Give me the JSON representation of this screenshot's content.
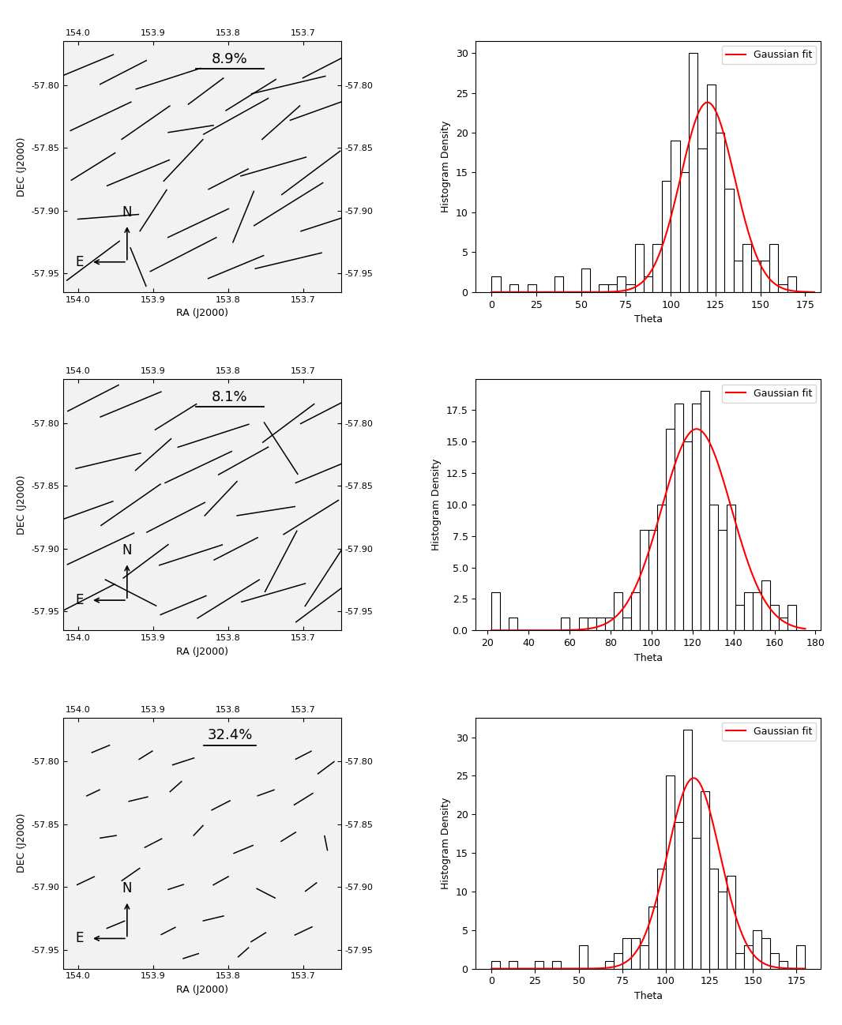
{
  "chart_data": [
    {
      "type": "vector_map",
      "xlabel": "RA (J2000)",
      "ylabel": "DEC (J2000)",
      "xlim": [
        154.02,
        153.65
      ],
      "ylim": [
        -57.965,
        -57.765
      ],
      "xticks": [
        {
          "value": 154.0,
          "label": "154.0"
        },
        {
          "value": 153.9,
          "label": "153.9"
        },
        {
          "value": 153.8,
          "label": "153.8"
        },
        {
          "value": 153.7,
          "label": "153.7"
        }
      ],
      "yticks": [
        {
          "value": -57.8,
          "label": "-57.80"
        },
        {
          "value": -57.85,
          "label": "-57.85"
        },
        {
          "value": -57.9,
          "label": "-57.90"
        },
        {
          "value": -57.95,
          "label": "-57.95"
        }
      ],
      "color": "black",
      "scale_bar": {
        "value": 8.9,
        "label": "8.9%"
      },
      "annotations": [
        "N",
        "E"
      ],
      "vectors": {
        "ra": [
          153.99,
          153.94,
          153.88,
          153.83,
          153.77,
          153.72,
          153.67,
          153.97,
          153.91,
          153.85,
          153.79,
          153.73,
          153.68,
          153.98,
          153.92,
          153.86,
          153.8,
          153.74,
          153.69,
          153.96,
          153.9,
          153.84,
          153.78,
          153.72,
          153.67,
          153.98,
          153.92,
          153.86,
          153.79,
          153.72
        ],
        "dec": [
          -57.785,
          -57.79,
          -57.795,
          -57.805,
          -57.808,
          -57.8,
          -57.785,
          -57.825,
          -57.83,
          -57.835,
          -57.825,
          -57.83,
          -57.82,
          -57.865,
          -57.87,
          -57.86,
          -57.875,
          -57.865,
          -57.87,
          -57.905,
          -57.9,
          -57.91,
          -57.905,
          -57.895,
          -57.91,
          -57.94,
          -57.945,
          -57.935,
          -57.945,
          -57.94
        ],
        "p": [
          8,
          7,
          9,
          6,
          8,
          10,
          7,
          9,
          8,
          6,
          10,
          7,
          8,
          7,
          9,
          8,
          6,
          9,
          10,
          8,
          7,
          9,
          8,
          11,
          7,
          9,
          6,
          10,
          8,
          9
        ],
        "theta": [
          115,
          120,
          110,
          130,
          125,
          105,
          120,
          118,
          128,
          100,
          122,
          135,
          112,
          125,
          115,
          140,
          120,
          108,
          130,
          95,
          150,
          118,
          160,
          125,
          110,
          130,
          20,
          120,
          115,
          105
        ]
      }
    },
    {
      "type": "histogram",
      "xlabel": "Theta",
      "ylabel": "Histogram Density",
      "xlim": [
        -8.75,
        183.75
      ],
      "ylim": [
        0,
        31.5
      ],
      "xticks": [
        0,
        25,
        50,
        75,
        100,
        125,
        150,
        175
      ],
      "yticks": [
        0,
        5,
        10,
        15,
        20,
        25,
        30
      ],
      "color": "black",
      "legend": "upper right",
      "bins": [
        0,
        5,
        10,
        15,
        20,
        25,
        30,
        35,
        40,
        45,
        50,
        55,
        60,
        65,
        70,
        75,
        80,
        85,
        90,
        95,
        100,
        105,
        110,
        115,
        120,
        125,
        130,
        135,
        140,
        145,
        150,
        155,
        160,
        165,
        170,
        175,
        180
      ],
      "counts": [
        2,
        0,
        1,
        0,
        1,
        0,
        0,
        2,
        0,
        0,
        3,
        0,
        1,
        1,
        2,
        1,
        6,
        2,
        6,
        14,
        19,
        15,
        30,
        18,
        26,
        20,
        13,
        4,
        6,
        4,
        4,
        6,
        1,
        2,
        0,
        0
      ],
      "series": [
        {
          "name": "Gaussian fit",
          "color": "red",
          "mean": 120.5,
          "sigma": 15.0,
          "amplitude": 23.8
        }
      ]
    },
    {
      "type": "vector_map",
      "xlabel": "RA (J2000)",
      "ylabel": "DEC (J2000)",
      "xlim": [
        154.02,
        153.65
      ],
      "ylim": [
        -57.965,
        -57.765
      ],
      "xticks": [
        {
          "value": 154.0,
          "label": "154.0"
        },
        {
          "value": 153.9,
          "label": "153.9"
        },
        {
          "value": 153.8,
          "label": "153.8"
        },
        {
          "value": 153.7,
          "label": "153.7"
        }
      ],
      "yticks": [
        {
          "value": -57.8,
          "label": "-57.80"
        },
        {
          "value": -57.85,
          "label": "-57.85"
        },
        {
          "value": -57.9,
          "label": "-57.90"
        },
        {
          "value": -57.95,
          "label": "-57.95"
        }
      ],
      "color": "black",
      "scale_bar": {
        "value": 8.1,
        "label": "8.1%"
      },
      "annotations": [
        "N",
        "E"
      ],
      "vectors": {
        "ra": [
          153.98,
          153.93,
          153.87,
          153.82,
          153.72,
          153.67,
          153.96,
          153.9,
          153.84,
          153.78,
          153.73,
          153.68,
          153.99,
          153.93,
          153.87,
          153.81,
          153.75,
          153.69,
          153.97,
          153.91,
          153.85,
          153.79,
          153.73,
          153.67,
          153.99,
          153.93,
          153.86,
          153.8,
          153.74,
          153.68
        ],
        "dec": [
          -57.78,
          -57.785,
          -57.795,
          -57.81,
          -57.8,
          -57.79,
          -57.83,
          -57.825,
          -57.835,
          -57.83,
          -57.82,
          -57.84,
          -57.87,
          -57.865,
          -57.875,
          -57.86,
          -57.87,
          -57.875,
          -57.9,
          -57.91,
          -57.905,
          -57.9,
          -57.91,
          -57.92,
          -57.94,
          -57.935,
          -57.945,
          -57.94,
          -57.935,
          -57.945
        ],
        "p": [
          7,
          8,
          6,
          9,
          8,
          7,
          8,
          6,
          9,
          7,
          8,
          6,
          7,
          9,
          8,
          6,
          7,
          8,
          9,
          7,
          8,
          6,
          9,
          10,
          8,
          7,
          6,
          9,
          8,
          7
        ],
        "theta": [
          120,
          115,
          125,
          110,
          130,
          120,
          105,
          135,
          118,
          122,
          30,
          115,
          112,
          128,
          120,
          140,
          100,
          125,
          118,
          130,
          110,
          120,
          155,
          150,
          120,
          60,
          115,
          125,
          108,
          130
        ]
      }
    },
    {
      "type": "histogram",
      "xlabel": "Theta",
      "ylabel": "Histogram Density",
      "xlim": [
        14.35,
        182.65
      ],
      "ylim": [
        0,
        19.95
      ],
      "xticks": [
        20,
        40,
        60,
        80,
        100,
        120,
        140,
        160,
        180
      ],
      "yticks": [
        {
          "value": 0,
          "label": "0.0"
        },
        {
          "value": 2.5,
          "label": "2.5"
        },
        {
          "value": 5,
          "label": "5.0"
        },
        {
          "value": 7.5,
          "label": "7.5"
        },
        {
          "value": 10,
          "label": "10.0"
        },
        {
          "value": 12.5,
          "label": "12.5"
        },
        {
          "value": 15,
          "label": "15.0"
        },
        {
          "value": 17.5,
          "label": "17.5"
        }
      ],
      "color": "black",
      "legend": "upper right",
      "bins": [
        22,
        26.25,
        30.5,
        34.75,
        39,
        43.25,
        47.5,
        51.75,
        56,
        60.25,
        64.5,
        68.75,
        73,
        77.25,
        81.5,
        85.75,
        90,
        94.25,
        98.5,
        102.75,
        107,
        111.25,
        115.5,
        119.75,
        124,
        128.25,
        132.5,
        136.75,
        141,
        145.25,
        149.5,
        153.75,
        158,
        162.25,
        166.5,
        170.75,
        175
      ],
      "counts": [
        3,
        0,
        1,
        0,
        0,
        0,
        0,
        0,
        1,
        0,
        1,
        1,
        1,
        1,
        3,
        1,
        3,
        8,
        8,
        10,
        16,
        18,
        15,
        18,
        19,
        10,
        8,
        10,
        2,
        3,
        3,
        4,
        2,
        1,
        2,
        0
      ],
      "series": [
        {
          "name": "Gaussian fit",
          "color": "red",
          "mean": 122.0,
          "sigma": 17.0,
          "amplitude": 16.0
        }
      ]
    },
    {
      "type": "vector_map",
      "xlabel": "RA (J2000)",
      "ylabel": "DEC (J2000)",
      "xlim": [
        154.02,
        153.65
      ],
      "ylim": [
        -57.965,
        -57.765
      ],
      "xticks": [
        {
          "value": 154.0,
          "label": "154.0"
        },
        {
          "value": 153.9,
          "label": "153.9"
        },
        {
          "value": 153.8,
          "label": "153.8"
        },
        {
          "value": 153.7,
          "label": "153.7"
        }
      ],
      "yticks": [
        {
          "value": -57.8,
          "label": "-57.80"
        },
        {
          "value": -57.85,
          "label": "-57.85"
        },
        {
          "value": -57.9,
          "label": "-57.90"
        },
        {
          "value": -57.95,
          "label": "-57.95"
        }
      ],
      "color": "black",
      "scale_bar": {
        "value": 32.4,
        "label": "32.4%"
      },
      "annotations": [
        "N",
        "E"
      ],
      "vectors": {
        "ra": [
          153.97,
          153.91,
          153.86,
          153.7,
          153.67,
          153.98,
          153.92,
          153.87,
          153.81,
          153.75,
          153.7,
          153.96,
          153.9,
          153.84,
          153.78,
          153.72,
          153.67,
          153.99,
          153.93,
          153.87,
          153.81,
          153.75,
          153.69,
          153.95,
          153.88,
          153.82,
          153.76,
          153.7,
          153.85,
          153.78
        ],
        "dec": [
          -57.79,
          -57.795,
          -57.8,
          -57.795,
          -57.805,
          -57.825,
          -57.83,
          -57.82,
          -57.835,
          -57.825,
          -57.83,
          -57.86,
          -57.865,
          -57.855,
          -57.87,
          -57.86,
          -57.865,
          -57.895,
          -57.89,
          -57.9,
          -57.895,
          -57.905,
          -57.9,
          -57.93,
          -57.935,
          -57.925,
          -57.94,
          -57.935,
          -57.955,
          -57.952
        ],
        "p": [
          12,
          10,
          14,
          11,
          13,
          9,
          12,
          10,
          13,
          11,
          14,
          10,
          12,
          9,
          13,
          11,
          10,
          12,
          14,
          10,
          11,
          13,
          9,
          12,
          10,
          13,
          11,
          12,
          10,
          9
        ],
        "theta": [
          115,
          125,
          110,
          120,
          130,
          118,
          105,
          135,
          120,
          112,
          125,
          100,
          120,
          140,
          115,
          125,
          10,
          118,
          128,
          110,
          122,
          60,
          130,
          115,
          120,
          105,
          125,
          118,
          110,
          135
        ]
      }
    },
    {
      "type": "histogram",
      "xlabel": "Theta",
      "ylabel": "Histogram Density",
      "xlim": [
        -9,
        189
      ],
      "ylim": [
        0,
        32.55
      ],
      "xticks": [
        0,
        25,
        50,
        75,
        100,
        125,
        150,
        175
      ],
      "yticks": [
        0,
        5,
        10,
        15,
        20,
        25,
        30
      ],
      "color": "black",
      "legend": "upper right",
      "bins": [
        0,
        5,
        10,
        15,
        20,
        25,
        30,
        35,
        40,
        45,
        50,
        55,
        60,
        65,
        70,
        75,
        80,
        85,
        90,
        95,
        100,
        105,
        110,
        115,
        120,
        125,
        130,
        135,
        140,
        145,
        150,
        155,
        160,
        165,
        170,
        175,
        180
      ],
      "counts": [
        1,
        0,
        1,
        0,
        0,
        1,
        0,
        1,
        0,
        0,
        3,
        0,
        0,
        1,
        2,
        4,
        4,
        3,
        8,
        13,
        25,
        19,
        31,
        17,
        23,
        13,
        10,
        12,
        2,
        3,
        5,
        4,
        2,
        1,
        0,
        3
      ],
      "series": [
        {
          "name": "Gaussian fit",
          "color": "red",
          "mean": 116.0,
          "sigma": 15.0,
          "amplitude": 24.7
        }
      ]
    }
  ]
}
